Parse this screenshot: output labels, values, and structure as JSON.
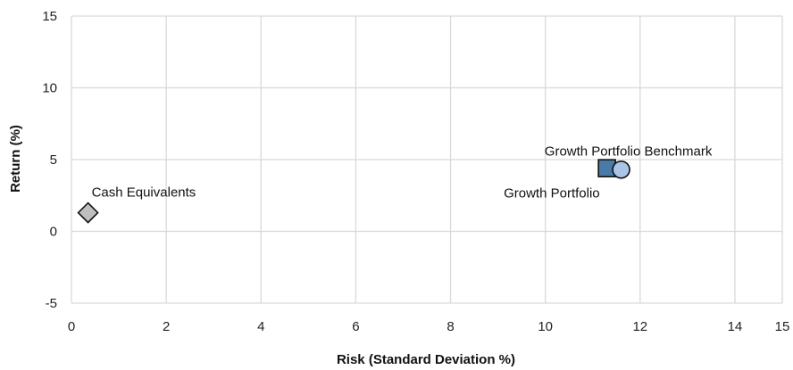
{
  "chart_data": {
    "type": "scatter",
    "title": "",
    "xlabel": "Risk (Standard Deviation %)",
    "ylabel": "Return (%)",
    "xlim": [
      0,
      15
    ],
    "ylim": [
      -5,
      15
    ],
    "xticks": [
      0,
      2,
      4,
      6,
      8,
      10,
      12,
      14,
      15
    ],
    "yticks": [
      -5,
      0,
      5,
      10,
      15
    ],
    "grid": true,
    "legend": "none",
    "series": [
      {
        "name": "Cash Equivalents",
        "x": 0.35,
        "y": 1.3,
        "marker": "diamond",
        "color": "#bfbfbf"
      },
      {
        "name": "Growth Portfolio",
        "x": 11.3,
        "y": 4.4,
        "marker": "square",
        "color": "#4a7aa7"
      },
      {
        "name": "Growth Portfolio Benchmark",
        "x": 11.6,
        "y": 4.3,
        "marker": "circle",
        "color": "#a9c4e4"
      }
    ]
  }
}
